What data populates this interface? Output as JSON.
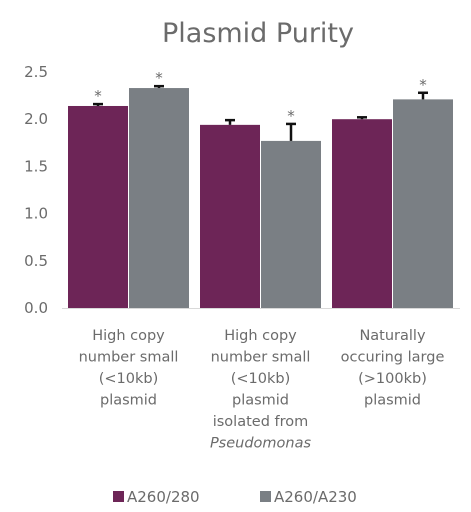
{
  "chart_data": {
    "type": "bar",
    "title": "Plasmid Purity",
    "xlabel": "",
    "ylabel": "",
    "ylim": [
      0,
      2.5
    ],
    "yticks": [
      "0.0",
      "0.5",
      "1.0",
      "1.5",
      "2.0",
      "2.5"
    ],
    "grid": false,
    "legend_position": "bottom",
    "categories": [
      {
        "lines": [
          {
            "text": "High copy",
            "italic": false
          },
          {
            "text": "number small",
            "italic": false
          },
          {
            "text": "(<10kb)",
            "italic": false
          },
          {
            "text": "plasmid",
            "italic": false
          }
        ]
      },
      {
        "lines": [
          {
            "text": "High copy",
            "italic": false
          },
          {
            "text": "number small",
            "italic": false
          },
          {
            "text": "(<10kb)",
            "italic": false
          },
          {
            "text": "plasmid",
            "italic": false
          },
          {
            "text": "isolated from",
            "italic": false
          },
          {
            "text": "Pseudomonas",
            "italic": true
          }
        ]
      },
      {
        "lines": [
          {
            "text": "Naturally",
            "italic": false
          },
          {
            "text": "occuring large",
            "italic": false
          },
          {
            "text": "(>100kb)",
            "italic": false
          },
          {
            "text": "plasmid",
            "italic": false
          }
        ]
      }
    ],
    "series": [
      {
        "name": "A260/280",
        "color": "#6d2557",
        "values": [
          2.14,
          1.94,
          2.0
        ],
        "errors": [
          0.02,
          0.05,
          0.02
        ],
        "stars": [
          "*",
          "",
          ""
        ]
      },
      {
        "name": "A260/A230",
        "color": "#7a7f84",
        "values": [
          2.33,
          1.77,
          2.21
        ],
        "errors": [
          0.02,
          0.18,
          0.07
        ],
        "stars": [
          "*",
          "*",
          "*"
        ]
      }
    ]
  }
}
